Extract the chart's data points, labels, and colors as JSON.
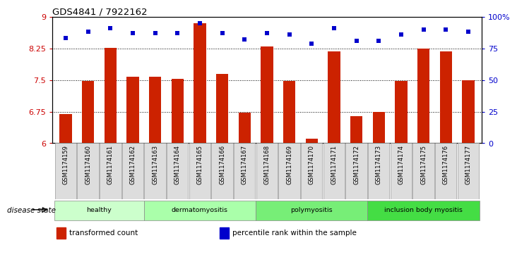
{
  "title": "GDS4841 / 7922162",
  "samples": [
    "GSM1174159",
    "GSM1174160",
    "GSM1174161",
    "GSM1174162",
    "GSM1174163",
    "GSM1174164",
    "GSM1174165",
    "GSM1174166",
    "GSM1174167",
    "GSM1174168",
    "GSM1174169",
    "GSM1174170",
    "GSM1174171",
    "GSM1174172",
    "GSM1174173",
    "GSM1174174",
    "GSM1174175",
    "GSM1174176",
    "GSM1174177"
  ],
  "bar_values": [
    6.7,
    7.47,
    8.27,
    7.57,
    7.57,
    7.53,
    8.85,
    7.65,
    6.73,
    8.3,
    7.47,
    6.1,
    8.17,
    6.65,
    6.75,
    7.47,
    8.25,
    8.17,
    7.5
  ],
  "dot_values": [
    83,
    88,
    91,
    87,
    87,
    87,
    95,
    87,
    82,
    87,
    86,
    79,
    91,
    81,
    81,
    86,
    90,
    90,
    88
  ],
  "bar_color": "#cc2200",
  "dot_color": "#0000cc",
  "ylim_left": [
    6,
    9
  ],
  "ylim_right": [
    0,
    100
  ],
  "yticks_left": [
    6,
    6.75,
    7.5,
    8.25,
    9
  ],
  "ytick_labels_left": [
    "6",
    "6.75",
    "7.5",
    "8.25",
    "9"
  ],
  "yticks_right": [
    0,
    25,
    50,
    75,
    100
  ],
  "ytick_labels_right": [
    "0",
    "25",
    "50",
    "75",
    "100%"
  ],
  "grid_lines": [
    6.75,
    7.5,
    8.25
  ],
  "groups": [
    {
      "label": "healthy",
      "start": 0,
      "end": 4,
      "color": "#ccffcc"
    },
    {
      "label": "dermatomyositis",
      "start": 4,
      "end": 9,
      "color": "#aaffaa"
    },
    {
      "label": "polymyositis",
      "start": 9,
      "end": 14,
      "color": "#77ee77"
    },
    {
      "label": "inclusion body myositis",
      "start": 14,
      "end": 19,
      "color": "#44dd44"
    }
  ],
  "disease_state_label": "disease state",
  "legend_items": [
    {
      "color": "#cc2200",
      "label": "transformed count"
    },
    {
      "color": "#0000cc",
      "label": "percentile rank within the sample"
    }
  ],
  "left_axis_color": "#cc0000",
  "right_axis_color": "#0000cc",
  "bar_width": 0.55,
  "tick_label_bg": "#dddddd",
  "tick_label_edge": "#999999"
}
